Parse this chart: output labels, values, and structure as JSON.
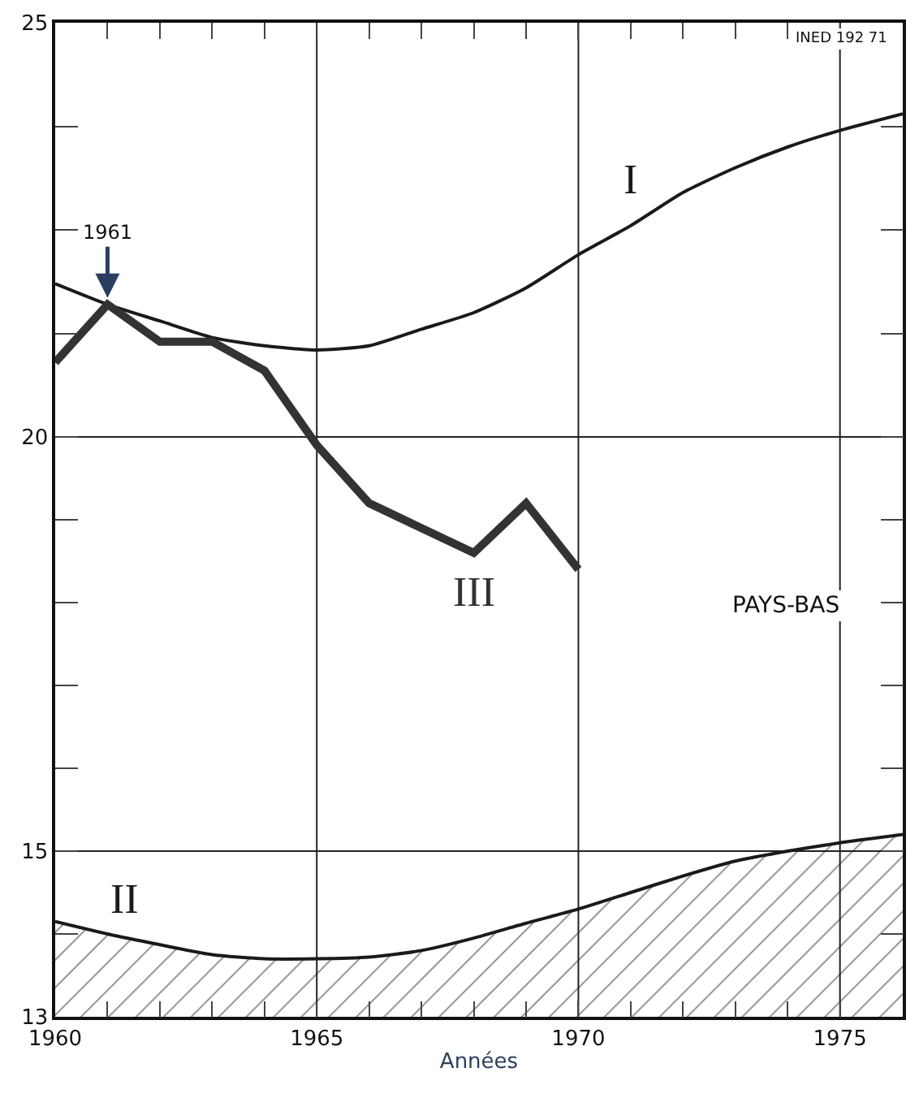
{
  "chart_data": {
    "type": "line",
    "xlabel": "Années",
    "x": [
      1960,
      1961,
      1962,
      1963,
      1964,
      1965,
      1966,
      1967,
      1968,
      1969,
      1970,
      1971,
      1972,
      1973,
      1974,
      1975,
      1976.2
    ],
    "series": [
      {
        "name": "I",
        "color": "#1a1a1a",
        "values": [
          21.85,
          21.6,
          21.4,
          21.2,
          21.1,
          21.05,
          21.1,
          21.3,
          21.5,
          21.8,
          22.2,
          22.55,
          22.95,
          23.25,
          23.5,
          23.7,
          23.9
        ]
      },
      {
        "name": "II",
        "type": "area",
        "color": "#1a1a1a",
        "values": [
          14.15,
          14.0,
          13.87,
          13.75,
          13.7,
          13.7,
          13.72,
          13.8,
          13.95,
          14.13,
          14.3,
          14.5,
          14.7,
          14.88,
          15.0,
          15.1,
          15.2
        ]
      },
      {
        "name": "III",
        "color": "#333333",
        "x": [
          1960,
          1961,
          1962,
          1963,
          1964,
          1965,
          1966,
          1967,
          1968,
          1969,
          1970
        ],
        "values": [
          20.9,
          21.6,
          21.15,
          21.15,
          20.8,
          19.9,
          19.2,
          18.9,
          18.6,
          19.2,
          18.4
        ]
      }
    ],
    "annotations": [
      {
        "text": "1961",
        "x": 1961,
        "y": 21.6
      },
      "PAYS-BAS",
      "INED 192 71"
    ],
    "xlim": [
      1960,
      1976.2
    ],
    "xticks": [
      1960,
      {
        "value": 1961,
        "label": null
      },
      {
        "value": 1962,
        "label": null
      },
      {
        "value": 1963,
        "label": null
      },
      {
        "value": 1964,
        "label": null
      },
      1965,
      {
        "value": 1966,
        "label": null
      },
      {
        "value": 1967,
        "label": null
      },
      {
        "value": 1968,
        "label": null
      },
      {
        "value": 1969,
        "label": null
      },
      1970,
      {
        "value": 1971,
        "label": null
      },
      {
        "value": 1972,
        "label": null
      },
      {
        "value": 1973,
        "label": null
      },
      {
        "value": 1974,
        "label": null
      },
      1975
    ],
    "ylim": [
      13,
      25
    ],
    "yticks": [
      13,
      {
        "value": 14,
        "label": null
      },
      15,
      {
        "value": 16,
        "label": null
      },
      {
        "value": 17,
        "label": null
      },
      {
        "value": 18,
        "label": null
      },
      {
        "value": 19,
        "label": null
      },
      20,
      {
        "value": 21.25,
        "label": null
      },
      {
        "value": 22.5,
        "label": null
      },
      {
        "value": 23.75,
        "label": null
      },
      25
    ],
    "grid": true,
    "legend": false,
    "marker": "none",
    "line_style": "solid"
  }
}
